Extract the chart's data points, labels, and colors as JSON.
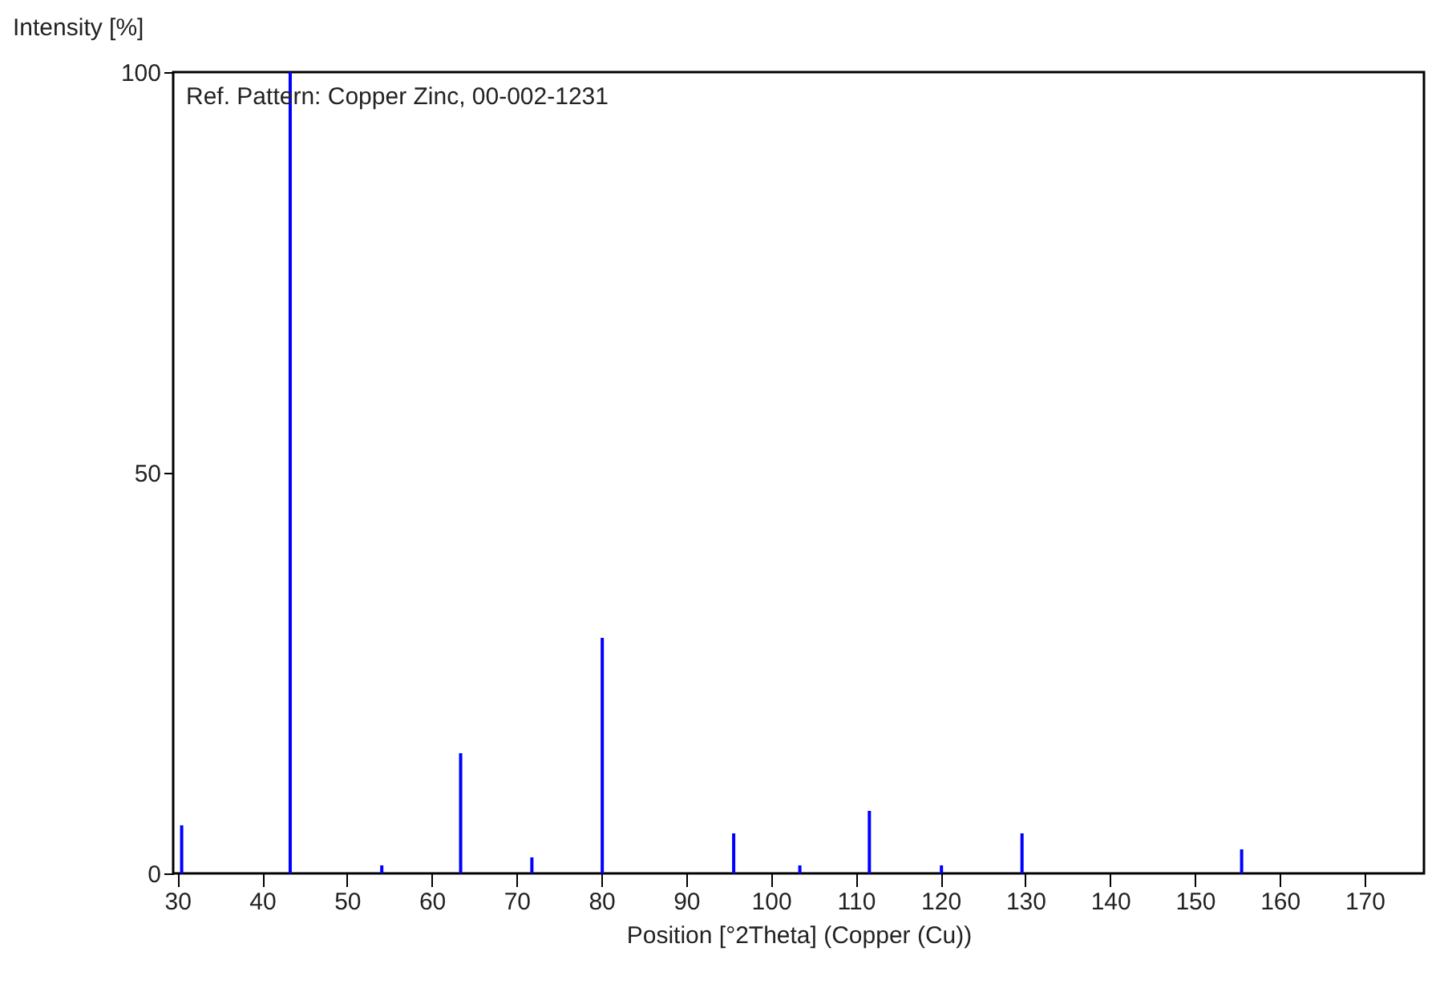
{
  "chart_data": {
    "type": "bar",
    "xlabel": "Position [°2Theta] (Copper (Cu))",
    "ylabel": "Intensity [%]",
    "annotations": [
      "Ref. Pattern: Copper Zinc, 00-002-1231"
    ],
    "x": [
      30.5,
      43.3,
      54.1,
      63.4,
      71.8,
      80.1,
      95.6,
      103.4,
      111.6,
      120.1,
      129.6,
      155.5
    ],
    "values": [
      6,
      100,
      1,
      15,
      2,
      29.4,
      5,
      1,
      7.8,
      1,
      5,
      3
    ],
    "color": "#0000ff",
    "xlim": [
      29.5,
      177
    ],
    "xticks": [
      30,
      40,
      50,
      60,
      70,
      80,
      90,
      100,
      110,
      120,
      130,
      140,
      150,
      160,
      170
    ],
    "ylim": [
      0,
      100
    ],
    "yticks": [
      0,
      50,
      100
    ]
  }
}
